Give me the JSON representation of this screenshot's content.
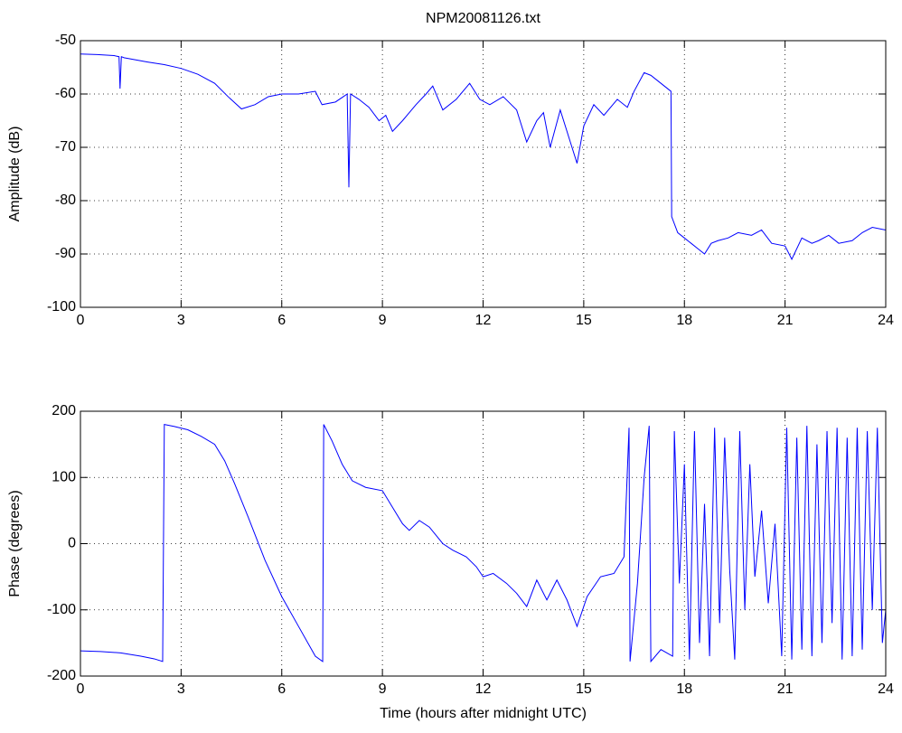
{
  "chart_data": [
    {
      "type": "line",
      "title": "NPM20081126.txt",
      "ylabel": "Amplitude (dB)",
      "xlim": [
        0,
        24
      ],
      "xticks": [
        0,
        3,
        6,
        9,
        12,
        15,
        18,
        21,
        24
      ],
      "ylim": [
        -100,
        -50
      ],
      "yticks": [
        -100,
        -90,
        -80,
        -70,
        -60,
        -50
      ],
      "grid": true,
      "color": "#0000ff",
      "x": [
        0,
        0.5,
        1.0,
        1.15,
        1.18,
        1.22,
        1.3,
        2.0,
        2.5,
        3.0,
        3.5,
        4.0,
        4.4,
        4.8,
        5.2,
        5.6,
        6.0,
        6.5,
        7.0,
        7.2,
        7.6,
        7.95,
        8.0,
        8.05,
        8.3,
        8.6,
        8.9,
        9.1,
        9.3,
        9.6,
        10.0,
        10.3,
        10.5,
        10.8,
        11.2,
        11.6,
        11.9,
        12.2,
        12.6,
        13.0,
        13.3,
        13.6,
        13.8,
        14.0,
        14.3,
        14.6,
        14.8,
        15.0,
        15.3,
        15.6,
        16.0,
        16.3,
        16.5,
        16.8,
        17.0,
        17.3,
        17.6,
        17.62,
        17.8,
        18.0,
        18.2,
        18.4,
        18.6,
        18.8,
        19.0,
        19.3,
        19.6,
        20.0,
        20.3,
        20.6,
        21.0,
        21.2,
        21.5,
        21.8,
        22.0,
        22.3,
        22.6,
        23.0,
        23.3,
        23.6,
        24.0
      ],
      "values": [
        -52.5,
        -52.6,
        -52.8,
        -53,
        -59,
        -53,
        -53.2,
        -54,
        -54.5,
        -55.2,
        -56.3,
        -58,
        -60.5,
        -62.8,
        -62,
        -60.5,
        -60,
        -60,
        -59.5,
        -62,
        -61.5,
        -60,
        -77.5,
        -60,
        -61,
        -62.5,
        -65,
        -64,
        -67,
        -65,
        -62,
        -60,
        -58.5,
        -63,
        -61,
        -58,
        -61,
        -62,
        -60.5,
        -63,
        -69,
        -65,
        -63.5,
        -70,
        -63,
        -69,
        -73,
        -66,
        -62,
        -64,
        -61,
        -62.5,
        -59.5,
        -56,
        -56.5,
        -58,
        -59.5,
        -83,
        -86,
        -87,
        -88,
        -89,
        -90,
        -88,
        -87.5,
        -87,
        -86,
        -86.5,
        -85.5,
        -88,
        -88.5,
        -91,
        -87,
        -88,
        -87.5,
        -86.5,
        -88,
        -87.5,
        -86,
        -85,
        -85.5
      ]
    },
    {
      "type": "line",
      "xlabel": "Time (hours after midnight UTC)",
      "ylabel": "Phase (degrees)",
      "xlim": [
        0,
        24
      ],
      "xticks": [
        0,
        3,
        6,
        9,
        12,
        15,
        18,
        21,
        24
      ],
      "ylim": [
        -200,
        200
      ],
      "yticks": [
        -200,
        -100,
        0,
        100,
        200
      ],
      "grid": true,
      "color": "#0000ff",
      "x": [
        0,
        0.6,
        1.2,
        1.8,
        2.2,
        2.45,
        2.5,
        2.8,
        3.2,
        3.6,
        4.0,
        4.3,
        4.6,
        5.0,
        5.5,
        6.0,
        6.5,
        7.0,
        7.22,
        7.25,
        7.5,
        7.8,
        8.1,
        8.5,
        9.0,
        9.3,
        9.6,
        9.8,
        10.1,
        10.4,
        10.8,
        11.1,
        11.5,
        11.8,
        12.0,
        12.3,
        12.7,
        13.0,
        13.3,
        13.6,
        13.9,
        14.2,
        14.5,
        14.8,
        15.1,
        15.5,
        15.9,
        16.2,
        16.35,
        16.38,
        16.6,
        16.8,
        16.95,
        17.0,
        17.3,
        17.65,
        17.7,
        17.85,
        18.0,
        18.15,
        18.3,
        18.45,
        18.6,
        18.75,
        18.9,
        19.05,
        19.2,
        19.35,
        19.5,
        19.65,
        19.8,
        19.95,
        20.1,
        20.3,
        20.5,
        20.7,
        20.9,
        21.05,
        21.2,
        21.35,
        21.5,
        21.65,
        21.8,
        21.95,
        22.1,
        22.25,
        22.4,
        22.55,
        22.7,
        22.85,
        23.0,
        23.15,
        23.3,
        23.45,
        23.6,
        23.75,
        23.9,
        24.0
      ],
      "values": [
        -162,
        -163,
        -165,
        -170,
        -174,
        -178,
        180,
        177,
        172,
        162,
        150,
        125,
        90,
        40,
        -25,
        -80,
        -125,
        -170,
        -178,
        180,
        155,
        120,
        95,
        85,
        80,
        55,
        30,
        20,
        35,
        25,
        0,
        -10,
        -20,
        -35,
        -50,
        -45,
        -60,
        -75,
        -95,
        -55,
        -85,
        -55,
        -85,
        -125,
        -80,
        -50,
        -45,
        -20,
        175,
        -178,
        -60,
        100,
        178,
        -178,
        -160,
        -170,
        170,
        -60,
        120,
        -175,
        170,
        -150,
        60,
        -170,
        175,
        -120,
        160,
        -40,
        -175,
        170,
        -100,
        120,
        -50,
        50,
        -90,
        30,
        -170,
        175,
        -175,
        160,
        -160,
        178,
        -170,
        150,
        -150,
        170,
        -120,
        175,
        -175,
        160,
        -170,
        175,
        -160,
        170,
        -100,
        175,
        -150,
        -100
      ]
    }
  ]
}
